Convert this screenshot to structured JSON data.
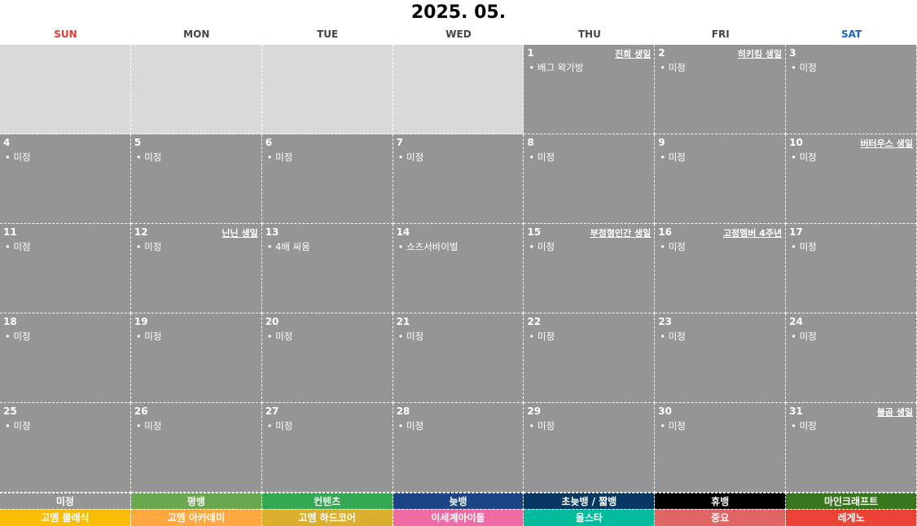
{
  "title": "2025. 05.",
  "weekdays": [
    {
      "label": "SUN",
      "color": "#e53935"
    },
    {
      "label": "MON",
      "color": "#444444"
    },
    {
      "label": "TUE",
      "color": "#444444"
    },
    {
      "label": "WED",
      "color": "#444444"
    },
    {
      "label": "THU",
      "color": "#444444"
    },
    {
      "label": "FRI",
      "color": "#444444"
    },
    {
      "label": "SAT",
      "color": "#1565c0"
    }
  ],
  "weeks": [
    [
      null,
      null,
      null,
      null,
      {
        "day": "1",
        "note": "진희 생일",
        "events": [
          "• 배그 왁가방"
        ]
      },
      {
        "day": "2",
        "note": "히키킹 생일",
        "events": [
          "• 미정"
        ]
      },
      {
        "day": "3",
        "note": "",
        "events": [
          "• 미정"
        ]
      }
    ],
    [
      {
        "day": "4",
        "events": [
          "• 미정"
        ]
      },
      {
        "day": "5",
        "events": [
          "• 미정"
        ]
      },
      {
        "day": "6",
        "events": [
          "• 미정"
        ]
      },
      {
        "day": "7",
        "events": [
          "• 미정"
        ]
      },
      {
        "day": "8",
        "events": [
          "• 미정"
        ]
      },
      {
        "day": "9",
        "events": [
          "• 미정"
        ]
      },
      {
        "day": "10",
        "note": "버터우스 생일",
        "events": [
          "• 미정"
        ]
      }
    ],
    [
      {
        "day": "11",
        "events": [
          "• 미정"
        ]
      },
      {
        "day": "12",
        "note": "닌닌 생일",
        "events": [
          "• 미정"
        ]
      },
      {
        "day": "13",
        "events": [
          "• 4배 싸움"
        ]
      },
      {
        "day": "14",
        "events": [
          "• 쇼츠서바이벌"
        ]
      },
      {
        "day": "15",
        "note": "부정형인간 생일",
        "events": [
          "• 미정"
        ]
      },
      {
        "day": "16",
        "note": "고정멤버 4주년",
        "events": [
          "• 미정"
        ]
      },
      {
        "day": "17",
        "events": [
          "• 미정"
        ]
      }
    ],
    [
      {
        "day": "18",
        "events": [
          "• 미정"
        ]
      },
      {
        "day": "19",
        "events": [
          "• 미정"
        ]
      },
      {
        "day": "20",
        "events": [
          "• 미정"
        ]
      },
      {
        "day": "21",
        "events": [
          "• 미정"
        ]
      },
      {
        "day": "22",
        "events": [
          "• 미정"
        ]
      },
      {
        "day": "23",
        "events": [
          "• 미정"
        ]
      },
      {
        "day": "24",
        "events": [
          "• 미정"
        ]
      }
    ],
    [
      {
        "day": "25",
        "events": [
          "• 미정"
        ]
      },
      {
        "day": "26",
        "events": [
          "• 미정"
        ]
      },
      {
        "day": "27",
        "events": [
          "• 미정"
        ]
      },
      {
        "day": "28",
        "events": [
          "• 미정"
        ]
      },
      {
        "day": "29",
        "events": [
          "• 미정"
        ]
      },
      {
        "day": "30",
        "events": [
          "• 미정"
        ]
      },
      {
        "day": "31",
        "note": "불곰 생일",
        "events": [
          "• 미정"
        ]
      }
    ]
  ],
  "legend": [
    [
      {
        "label": "미정",
        "color": "#959595"
      },
      {
        "label": "평뱅",
        "color": "#6aa84f"
      },
      {
        "label": "컨텐츠",
        "color": "#34a853"
      },
      {
        "label": "늦뱅",
        "color": "#1c4587"
      },
      {
        "label": "초늦뱅 / 짧뱅",
        "color": "#073763"
      },
      {
        "label": "휴뱅",
        "color": "#000000"
      },
      {
        "label": "마인크래프트",
        "color": "#38761d"
      }
    ],
    [
      {
        "label": "고멤 클래식",
        "color": "#fbbc04"
      },
      {
        "label": "고멤 아카데미",
        "color": "#ffa841"
      },
      {
        "label": "고멤 하드코어",
        "color": "#dcaf2e"
      },
      {
        "label": "이세계아이돌",
        "color": "#f06aa3"
      },
      {
        "label": "올스타",
        "color": "#00bb9c"
      },
      {
        "label": "중요",
        "color": "#e06666"
      },
      {
        "label": "레게노",
        "color": "#ea4335"
      }
    ]
  ]
}
